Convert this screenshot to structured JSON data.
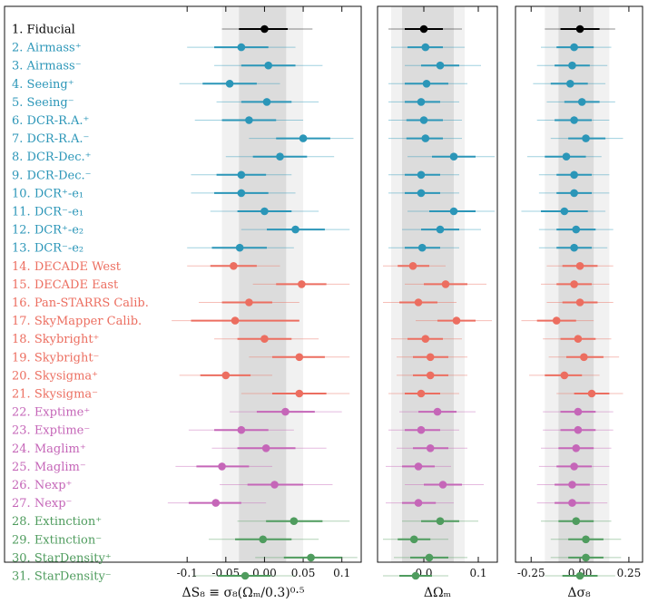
{
  "chart_data": [
    {
      "type": "scatter",
      "panel": "s8",
      "xlabel": "ΔS₈ ≡ σ₈(Ωₘ/0.3)⁰·⁵",
      "xlim": [
        -0.18,
        0.125
      ],
      "xticks": [
        -0.1,
        -0.05,
        0.0,
        0.05,
        0.1
      ],
      "xtick_labels": [
        "-0.1",
        "-0.05",
        "0.00",
        "0.05",
        "0.1"
      ],
      "band_1sigma": [
        -0.033,
        0.028
      ],
      "band_2sigma": [
        -0.055,
        0.05
      ],
      "points": [
        {
          "v": 0.0,
          "lo1": -0.033,
          "hi1": 0.03,
          "lo2": -0.055,
          "hi2": 0.062
        },
        {
          "v": -0.03,
          "lo1": -0.065,
          "hi1": 0.005,
          "lo2": -0.1,
          "hi2": 0.04
        },
        {
          "v": 0.005,
          "lo1": -0.03,
          "hi1": 0.04,
          "lo2": -0.065,
          "hi2": 0.075
        },
        {
          "v": -0.045,
          "lo1": -0.08,
          "hi1": -0.01,
          "lo2": -0.11,
          "hi2": 0.02
        },
        {
          "v": 0.003,
          "lo1": -0.03,
          "hi1": 0.035,
          "lo2": -0.062,
          "hi2": 0.07
        },
        {
          "v": -0.02,
          "lo1": -0.055,
          "hi1": 0.015,
          "lo2": -0.09,
          "hi2": 0.05
        },
        {
          "v": 0.05,
          "lo1": 0.015,
          "hi1": 0.085,
          "lo2": -0.02,
          "hi2": 0.115
        },
        {
          "v": 0.02,
          "lo1": -0.015,
          "hi1": 0.055,
          "lo2": -0.05,
          "hi2": 0.09
        },
        {
          "v": -0.03,
          "lo1": -0.062,
          "hi1": 0.002,
          "lo2": -0.095,
          "hi2": 0.035
        },
        {
          "v": -0.03,
          "lo1": -0.065,
          "hi1": 0.005,
          "lo2": -0.095,
          "hi2": 0.04
        },
        {
          "v": 0.0,
          "lo1": -0.035,
          "hi1": 0.035,
          "lo2": -0.07,
          "hi2": 0.07
        },
        {
          "v": 0.04,
          "lo1": 0.003,
          "hi1": 0.078,
          "lo2": -0.03,
          "hi2": 0.11
        },
        {
          "v": -0.032,
          "lo1": -0.068,
          "hi1": 0.003,
          "lo2": -0.1,
          "hi2": 0.038
        },
        {
          "v": -0.04,
          "lo1": -0.07,
          "hi1": -0.01,
          "lo2": -0.1,
          "hi2": 0.02
        },
        {
          "v": 0.048,
          "lo1": 0.015,
          "hi1": 0.08,
          "lo2": -0.015,
          "hi2": 0.11
        },
        {
          "v": -0.02,
          "lo1": -0.055,
          "hi1": 0.01,
          "lo2": -0.085,
          "hi2": 0.045
        },
        {
          "v": -0.038,
          "lo1": -0.095,
          "hi1": 0.045,
          "lo2": -0.12,
          "hi2": 0.045
        },
        {
          "v": 0.0,
          "lo1": -0.035,
          "hi1": 0.035,
          "lo2": -0.065,
          "hi2": 0.07
        },
        {
          "v": 0.045,
          "lo1": 0.01,
          "hi1": 0.078,
          "lo2": -0.02,
          "hi2": 0.11
        },
        {
          "v": -0.05,
          "lo1": -0.083,
          "hi1": -0.018,
          "lo2": -0.11,
          "hi2": 0.01
        },
        {
          "v": 0.045,
          "lo1": 0.01,
          "hi1": 0.08,
          "lo2": -0.03,
          "hi2": 0.11
        },
        {
          "v": 0.027,
          "lo1": -0.01,
          "hi1": 0.065,
          "lo2": -0.045,
          "hi2": 0.1
        },
        {
          "v": -0.03,
          "lo1": -0.065,
          "hi1": 0.005,
          "lo2": -0.098,
          "hi2": 0.038
        },
        {
          "v": 0.002,
          "lo1": -0.035,
          "hi1": 0.04,
          "lo2": -0.068,
          "hi2": 0.08
        },
        {
          "v": -0.055,
          "lo1": -0.088,
          "hi1": -0.02,
          "lo2": -0.115,
          "hi2": 0.01
        },
        {
          "v": 0.013,
          "lo1": -0.022,
          "hi1": 0.05,
          "lo2": -0.058,
          "hi2": 0.088
        },
        {
          "v": -0.063,
          "lo1": -0.098,
          "hi1": -0.03,
          "lo2": -0.125,
          "hi2": 0.002
        },
        {
          "v": 0.038,
          "lo1": 0.002,
          "hi1": 0.075,
          "lo2": -0.035,
          "hi2": 0.11
        },
        {
          "v": -0.002,
          "lo1": -0.038,
          "hi1": 0.035,
          "lo2": -0.072,
          "hi2": 0.07
        },
        {
          "v": 0.06,
          "lo1": 0.025,
          "hi1": 0.1,
          "lo2": -0.012,
          "hi2": 0.12
        },
        {
          "v": -0.025,
          "lo1": -0.06,
          "hi1": 0.008,
          "lo2": -0.092,
          "hi2": 0.04
        }
      ]
    },
    {
      "type": "scatter",
      "panel": "om",
      "xlabel": "ΔΩₘ",
      "xlim": [
        -0.085,
        0.135
      ],
      "xticks": [
        0.0,
        0.1
      ],
      "xtick_labels": [
        "0.0",
        "0.1"
      ],
      "band_1sigma": [
        -0.04,
        0.055
      ],
      "band_2sigma": [
        -0.06,
        0.075
      ],
      "points": [
        {
          "v": 0.0,
          "lo1": -0.035,
          "hi1": 0.035,
          "lo2": -0.065,
          "hi2": 0.07
        },
        {
          "v": 0.003,
          "lo1": -0.03,
          "hi1": 0.035,
          "lo2": -0.06,
          "hi2": 0.075
        },
        {
          "v": 0.03,
          "lo1": -0.005,
          "hi1": 0.065,
          "lo2": -0.035,
          "hi2": 0.105
        },
        {
          "v": 0.005,
          "lo1": -0.035,
          "hi1": 0.045,
          "lo2": -0.065,
          "hi2": 0.08
        },
        {
          "v": -0.005,
          "lo1": -0.035,
          "hi1": 0.03,
          "lo2": -0.065,
          "hi2": 0.065
        },
        {
          "v": 0.0,
          "lo1": -0.032,
          "hi1": 0.035,
          "lo2": -0.065,
          "hi2": 0.07
        },
        {
          "v": 0.003,
          "lo1": -0.032,
          "hi1": 0.035,
          "lo2": -0.065,
          "hi2": 0.07
        },
        {
          "v": 0.055,
          "lo1": 0.015,
          "hi1": 0.095,
          "lo2": -0.03,
          "hi2": 0.13
        },
        {
          "v": -0.005,
          "lo1": -0.035,
          "hi1": 0.03,
          "lo2": -0.065,
          "hi2": 0.065
        },
        {
          "v": -0.005,
          "lo1": -0.035,
          "hi1": 0.03,
          "lo2": -0.065,
          "hi2": 0.065
        },
        {
          "v": 0.055,
          "lo1": 0.01,
          "hi1": 0.095,
          "lo2": -0.03,
          "hi2": 0.13
        },
        {
          "v": 0.03,
          "lo1": -0.005,
          "hi1": 0.065,
          "lo2": -0.04,
          "hi2": 0.105
        },
        {
          "v": -0.003,
          "lo1": -0.035,
          "hi1": 0.03,
          "lo2": -0.065,
          "hi2": 0.065
        },
        {
          "v": -0.02,
          "lo1": -0.048,
          "hi1": 0.01,
          "lo2": -0.075,
          "hi2": 0.04
        },
        {
          "v": 0.04,
          "lo1": 0.0,
          "hi1": 0.08,
          "lo2": -0.035,
          "hi2": 0.115
        },
        {
          "v": -0.01,
          "lo1": -0.045,
          "hi1": 0.025,
          "lo2": -0.075,
          "hi2": 0.06
        },
        {
          "v": 0.06,
          "lo1": 0.025,
          "hi1": 0.095,
          "lo2": -0.015,
          "hi2": 0.125
        },
        {
          "v": 0.003,
          "lo1": -0.03,
          "hi1": 0.035,
          "lo2": -0.06,
          "hi2": 0.07
        },
        {
          "v": 0.012,
          "lo1": -0.02,
          "hi1": 0.045,
          "lo2": -0.05,
          "hi2": 0.08
        },
        {
          "v": 0.012,
          "lo1": -0.02,
          "hi1": 0.045,
          "lo2": -0.05,
          "hi2": 0.08
        },
        {
          "v": -0.005,
          "lo1": -0.035,
          "hi1": 0.03,
          "lo2": -0.065,
          "hi2": 0.065
        },
        {
          "v": 0.025,
          "lo1": -0.01,
          "hi1": 0.06,
          "lo2": -0.045,
          "hi2": 0.095
        },
        {
          "v": -0.005,
          "lo1": -0.035,
          "hi1": 0.03,
          "lo2": -0.065,
          "hi2": 0.065
        },
        {
          "v": 0.012,
          "lo1": -0.02,
          "hi1": 0.045,
          "lo2": -0.05,
          "hi2": 0.08
        },
        {
          "v": -0.01,
          "lo1": -0.04,
          "hi1": 0.02,
          "lo2": -0.07,
          "hi2": 0.05
        },
        {
          "v": 0.035,
          "lo1": 0.0,
          "hi1": 0.07,
          "lo2": -0.035,
          "hi2": 0.11
        },
        {
          "v": -0.01,
          "lo1": -0.04,
          "hi1": 0.022,
          "lo2": -0.07,
          "hi2": 0.055
        },
        {
          "v": 0.03,
          "lo1": -0.005,
          "hi1": 0.065,
          "lo2": -0.04,
          "hi2": 0.1
        },
        {
          "v": -0.018,
          "lo1": -0.048,
          "hi1": 0.012,
          "lo2": -0.075,
          "hi2": 0.045
        },
        {
          "v": 0.01,
          "lo1": -0.025,
          "hi1": 0.045,
          "lo2": -0.055,
          "hi2": 0.08
        },
        {
          "v": -0.015,
          "lo1": -0.045,
          "hi1": 0.015,
          "lo2": -0.075,
          "hi2": 0.045
        }
      ]
    },
    {
      "type": "scatter",
      "panel": "s8only",
      "xlabel": "Δσ₈",
      "xlim": [
        -0.33,
        0.32
      ],
      "xticks": [
        -0.25,
        0.0,
        0.25
      ],
      "xtick_labels": [
        "-0.25",
        "0.00",
        "0.25"
      ],
      "band_1sigma": [
        -0.11,
        0.07
      ],
      "band_2sigma": [
        -0.18,
        0.15
      ],
      "points": [
        {
          "v": 0.0,
          "lo1": -0.1,
          "hi1": 0.1,
          "lo2": -0.18,
          "hi2": 0.18
        },
        {
          "v": -0.03,
          "lo1": -0.12,
          "hi1": 0.07,
          "lo2": -0.2,
          "hi2": 0.16
        },
        {
          "v": -0.04,
          "lo1": -0.13,
          "hi1": 0.05,
          "lo2": -0.22,
          "hi2": 0.14
        },
        {
          "v": -0.05,
          "lo1": -0.15,
          "hi1": 0.04,
          "lo2": -0.24,
          "hi2": 0.13
        },
        {
          "v": 0.01,
          "lo1": -0.08,
          "hi1": 0.1,
          "lo2": -0.17,
          "hi2": 0.18
        },
        {
          "v": -0.03,
          "lo1": -0.13,
          "hi1": 0.06,
          "lo2": -0.22,
          "hi2": 0.15
        },
        {
          "v": 0.03,
          "lo1": -0.06,
          "hi1": 0.13,
          "lo2": -0.15,
          "hi2": 0.22
        },
        {
          "v": -0.07,
          "lo1": -0.18,
          "hi1": 0.03,
          "lo2": -0.27,
          "hi2": 0.11
        },
        {
          "v": -0.03,
          "lo1": -0.12,
          "hi1": 0.06,
          "lo2": -0.21,
          "hi2": 0.15
        },
        {
          "v": -0.03,
          "lo1": -0.12,
          "hi1": 0.06,
          "lo2": -0.21,
          "hi2": 0.15
        },
        {
          "v": -0.08,
          "lo1": -0.2,
          "hi1": 0.04,
          "lo2": -0.3,
          "hi2": 0.13
        },
        {
          "v": -0.02,
          "lo1": -0.12,
          "hi1": 0.08,
          "lo2": -0.21,
          "hi2": 0.17
        },
        {
          "v": -0.03,
          "lo1": -0.12,
          "hi1": 0.06,
          "lo2": -0.21,
          "hi2": 0.14
        },
        {
          "v": 0.0,
          "lo1": -0.09,
          "hi1": 0.09,
          "lo2": -0.17,
          "hi2": 0.17
        },
        {
          "v": -0.03,
          "lo1": -0.12,
          "hi1": 0.06,
          "lo2": -0.2,
          "hi2": 0.15
        },
        {
          "v": 0.0,
          "lo1": -0.09,
          "hi1": 0.09,
          "lo2": -0.17,
          "hi2": 0.17
        },
        {
          "v": -0.12,
          "lo1": -0.22,
          "hi1": -0.02,
          "lo2": -0.3,
          "hi2": 0.07
        },
        {
          "v": -0.01,
          "lo1": -0.1,
          "hi1": 0.08,
          "lo2": -0.19,
          "hi2": 0.16
        },
        {
          "v": 0.02,
          "lo1": -0.07,
          "hi1": 0.12,
          "lo2": -0.16,
          "hi2": 0.2
        },
        {
          "v": -0.08,
          "lo1": -0.18,
          "hi1": 0.01,
          "lo2": -0.26,
          "hi2": 0.1
        },
        {
          "v": 0.06,
          "lo1": -0.03,
          "hi1": 0.15,
          "lo2": -0.12,
          "hi2": 0.22
        },
        {
          "v": -0.01,
          "lo1": -0.1,
          "hi1": 0.08,
          "lo2": -0.19,
          "hi2": 0.17
        },
        {
          "v": -0.01,
          "lo1": -0.1,
          "hi1": 0.08,
          "lo2": -0.19,
          "hi2": 0.17
        },
        {
          "v": -0.02,
          "lo1": -0.11,
          "hi1": 0.07,
          "lo2": -0.2,
          "hi2": 0.16
        },
        {
          "v": -0.03,
          "lo1": -0.12,
          "hi1": 0.06,
          "lo2": -0.21,
          "hi2": 0.15
        },
        {
          "v": -0.04,
          "lo1": -0.13,
          "hi1": 0.05,
          "lo2": -0.22,
          "hi2": 0.14
        },
        {
          "v": -0.04,
          "lo1": -0.13,
          "hi1": 0.05,
          "lo2": -0.22,
          "hi2": 0.14
        },
        {
          "v": -0.02,
          "lo1": -0.11,
          "hi1": 0.07,
          "lo2": -0.2,
          "hi2": 0.16
        },
        {
          "v": 0.03,
          "lo1": -0.06,
          "hi1": 0.12,
          "lo2": -0.15,
          "hi2": 0.21
        },
        {
          "v": 0.03,
          "lo1": -0.06,
          "hi1": 0.12,
          "lo2": -0.15,
          "hi2": 0.21
        },
        {
          "v": 0.0,
          "lo1": -0.09,
          "hi1": 0.09,
          "lo2": -0.18,
          "hi2": 0.18
        }
      ]
    }
  ],
  "rows": [
    {
      "n": "1.",
      "label": "Fiducial",
      "group": "fiducial"
    },
    {
      "n": "2.",
      "label": "Airmass⁺",
      "group": "blue"
    },
    {
      "n": "3.",
      "label": "Airmass⁻",
      "group": "blue"
    },
    {
      "n": "4.",
      "label": "Seeing⁺",
      "group": "blue"
    },
    {
      "n": "5.",
      "label": "Seeing⁻",
      "group": "blue"
    },
    {
      "n": "6.",
      "label": "DCR-R.A.⁺",
      "group": "blue"
    },
    {
      "n": "7.",
      "label": "DCR-R.A.⁻",
      "group": "blue"
    },
    {
      "n": "8.",
      "label": "DCR-Dec.⁺",
      "group": "blue"
    },
    {
      "n": "9.",
      "label": "DCR-Dec.⁻",
      "group": "blue"
    },
    {
      "n": "10.",
      "label": "DCR⁺-e₁",
      "group": "blue"
    },
    {
      "n": "11.",
      "label": "DCR⁻-e₁",
      "group": "blue"
    },
    {
      "n": "12.",
      "label": "DCR⁺-e₂",
      "group": "blue"
    },
    {
      "n": "13.",
      "label": "DCR⁻-e₂",
      "group": "blue"
    },
    {
      "n": "14.",
      "label": "DECADE West",
      "group": "red"
    },
    {
      "n": "15.",
      "label": "DECADE East",
      "group": "red"
    },
    {
      "n": "16.",
      "label": "Pan-STARRS Calib.",
      "group": "red"
    },
    {
      "n": "17.",
      "label": "SkyMapper Calib.",
      "group": "red"
    },
    {
      "n": "18.",
      "label": "Skybright⁺",
      "group": "red"
    },
    {
      "n": "19.",
      "label": "Skybright⁻",
      "group": "red"
    },
    {
      "n": "20.",
      "label": "Skysigma⁺",
      "group": "red"
    },
    {
      "n": "21.",
      "label": "Skysigma⁻",
      "group": "red"
    },
    {
      "n": "22.",
      "label": "Exptime⁺",
      "group": "purple"
    },
    {
      "n": "23.",
      "label": "Exptime⁻",
      "group": "purple"
    },
    {
      "n": "24.",
      "label": "Maglim⁺",
      "group": "purple"
    },
    {
      "n": "25.",
      "label": "Maglim⁻",
      "group": "purple"
    },
    {
      "n": "26.",
      "label": "Nexp⁺",
      "group": "purple"
    },
    {
      "n": "27.",
      "label": "Nexp⁻",
      "group": "purple"
    },
    {
      "n": "28.",
      "label": "Extinction⁺",
      "group": "green"
    },
    {
      "n": "29.",
      "label": "Extinction⁻",
      "group": "green"
    },
    {
      "n": "30.",
      "label": "StarDensity⁺",
      "group": "green"
    },
    {
      "n": "31.",
      "label": "StarDensity⁻",
      "group": "green"
    }
  ],
  "colors": {
    "fiducial": "#000000",
    "blue": "#2b96b8",
    "red": "#ec6e60",
    "purple": "#c566b8",
    "green": "#4f9c5e",
    "band_inner": "#dcdcdc",
    "band_outer": "#f1f1f1"
  }
}
